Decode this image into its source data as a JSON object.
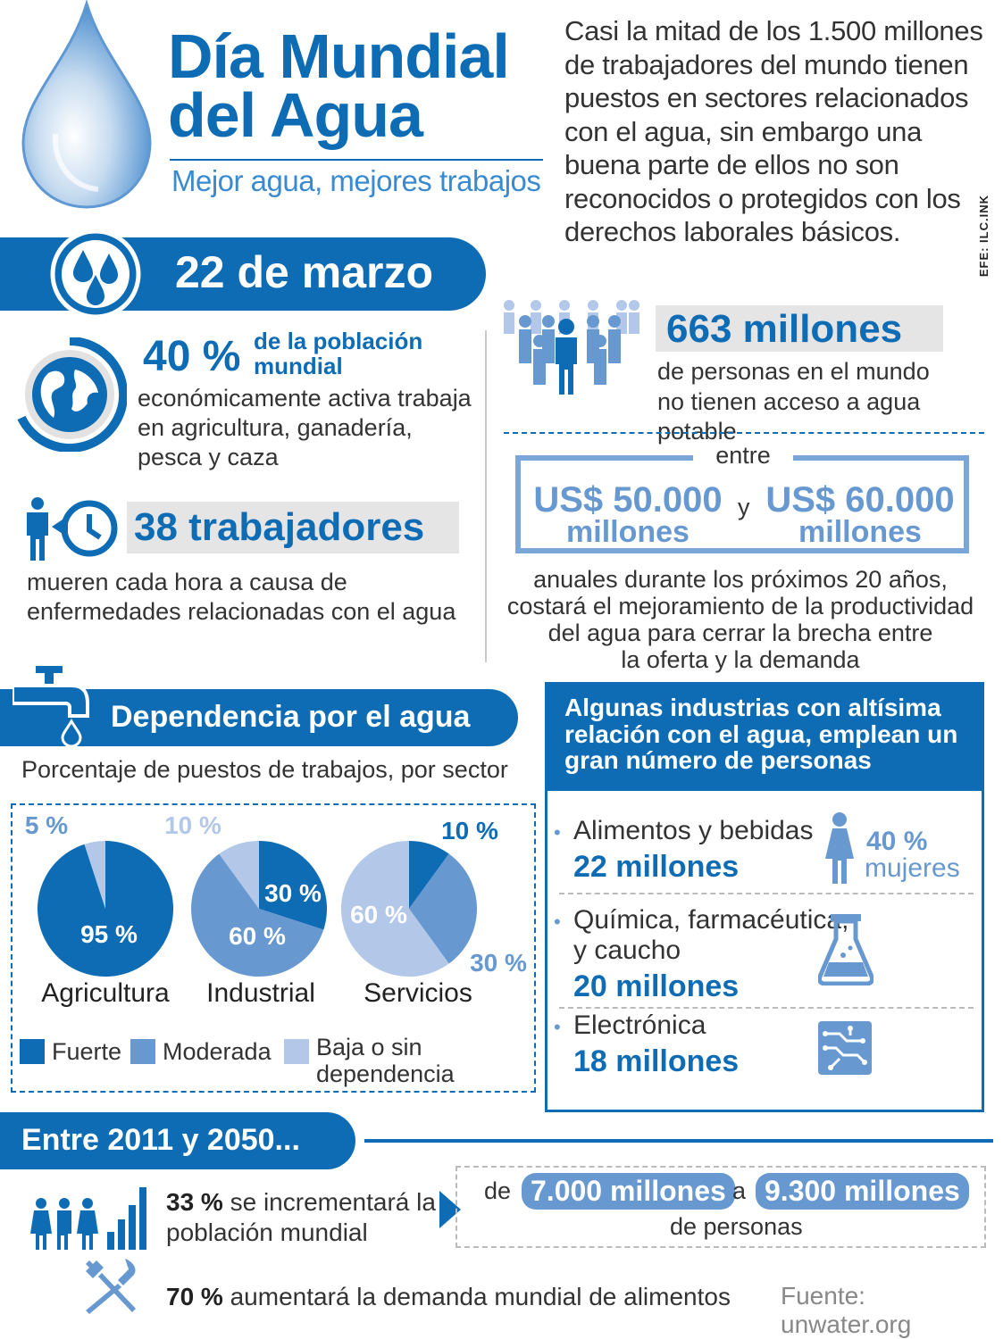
{
  "header": {
    "title_line1": "Día Mundial",
    "title_line2": "del Agua",
    "subtitle": "Mejor agua, mejores trabajos",
    "intro": "Casi la mitad de los 1.500 millones de trabajadores del mundo tienen puestos en sectores relacionados con el agua, sin embargo una buena parte de ellos no son reconocidos o protegidos con los derechos laborales básicos.",
    "credit": "EFE: ILC.INK"
  },
  "date": {
    "label": "22 de marzo"
  },
  "population": {
    "percent": "40 %",
    "highlight": "de la población mundial",
    "text": "económicamente activa trabaja en agricultura, ganadería, pesca y caza"
  },
  "workers": {
    "count": "38 trabajadores",
    "text": "mueren cada hora a causa de enfermedades relacionadas con el agua"
  },
  "water_access": {
    "count": "663 millones",
    "text_line1": "de personas en el mundo",
    "text_line2": "no tienen acceso a agua potable"
  },
  "cost": {
    "between": "entre",
    "amount1_line1": "US$ 50.000",
    "amount1_line2": "millones",
    "connector": "y",
    "amount2_line1": "US$ 60.000",
    "amount2_line2": "millones",
    "text_line1": "anuales durante los próximos 20 años,",
    "text_line2": "costará el mejoramiento de la productividad",
    "text_line3": "del agua para cerrar la brecha entre",
    "text_line4": "la oferta y la demanda"
  },
  "dependency": {
    "title": "Dependencia por el agua",
    "subtitle": "Porcentaje de puestos de trabajos, por sector",
    "legend": {
      "strong": "Fuerte",
      "moderate": "Moderada",
      "low": "Baja o sin dependencia"
    },
    "colors": {
      "strong": "#0e6cb5",
      "moderate": "#6799d0",
      "low": "#b3c8e8"
    }
  },
  "chart_data": {
    "type": "pie",
    "series": [
      {
        "name": "Agricultura",
        "categories": [
          "Fuerte",
          "Baja o sin dependencia"
        ],
        "values": [
          95,
          5
        ],
        "labels": [
          "95 %",
          "5 %"
        ]
      },
      {
        "name": "Industrial",
        "categories": [
          "Fuerte",
          "Moderada",
          "Baja o sin dependencia"
        ],
        "values": [
          30,
          60,
          10
        ],
        "labels": [
          "30 %",
          "60 %",
          "10 %"
        ]
      },
      {
        "name": "Servicios",
        "categories": [
          "Fuerte",
          "Moderada",
          "Baja o sin dependencia"
        ],
        "values": [
          10,
          30,
          60
        ],
        "labels": [
          "10 %",
          "30 %",
          "60 %"
        ]
      }
    ],
    "legend": [
      "Fuerte",
      "Moderada",
      "Baja o sin dependencia"
    ]
  },
  "industries": {
    "title": "Algunas industrias con altísima relación con el agua, emplean un gran número de personas",
    "items": [
      {
        "name": "Alimentos y bebidas",
        "value": "22 millones"
      },
      {
        "name_line1": "Química, farmacéutica,",
        "name_line2": "y caucho",
        "value": "20 millones"
      },
      {
        "name": "Electrónica",
        "value": "18 millones"
      }
    ],
    "women_percent": "40 %",
    "women_label": "mujeres"
  },
  "future": {
    "title": "Entre 2011 y 2050...",
    "pop_percent": "33 %",
    "pop_text_line1": "se incrementará la",
    "pop_text_line2": "población mundial",
    "from_word": "de",
    "from_value": "7.000 millones",
    "to_word": "a",
    "to_value": "9.300 millones",
    "people": "de personas",
    "food_percent": "70 %",
    "food_text": "aumentará la demanda mundial de alimentos"
  },
  "source": "Fuente: unwater.org"
}
